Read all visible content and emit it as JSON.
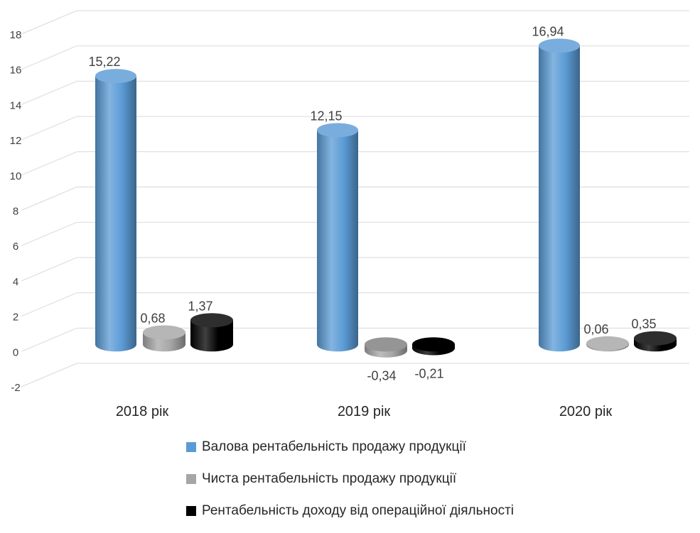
{
  "chart_data": {
    "type": "bar",
    "style": "3d-cylinder",
    "categories": [
      "2018 рік",
      "2019 рік",
      "2020 рік"
    ],
    "series": [
      {
        "name": "Валова рентабельність продажу продукції",
        "values": [
          15.22,
          12.15,
          16.94
        ],
        "labels": [
          "15,22",
          "12,15",
          "16,94"
        ],
        "color": "#5b9bd5"
      },
      {
        "name": "Чиста рентабельність продажу продукції",
        "values": [
          0.68,
          -0.34,
          0.06
        ],
        "labels": [
          "0,68",
          "-0,34",
          "0,06"
        ],
        "color": "#a6a6a6"
      },
      {
        "name": "Рентабельність доходу від операційної діяльності",
        "values": [
          1.37,
          -0.21,
          0.35
        ],
        "labels": [
          "1,37",
          "-0,21",
          "0,35"
        ],
        "color": "#000000"
      }
    ],
    "y_ticks": [
      "18",
      "16",
      "14",
      "12",
      "10",
      "8",
      "6",
      "4",
      "2",
      "0",
      "-2"
    ],
    "ylim": [
      -2,
      18
    ],
    "grid": true,
    "legend_position": "bottom"
  }
}
